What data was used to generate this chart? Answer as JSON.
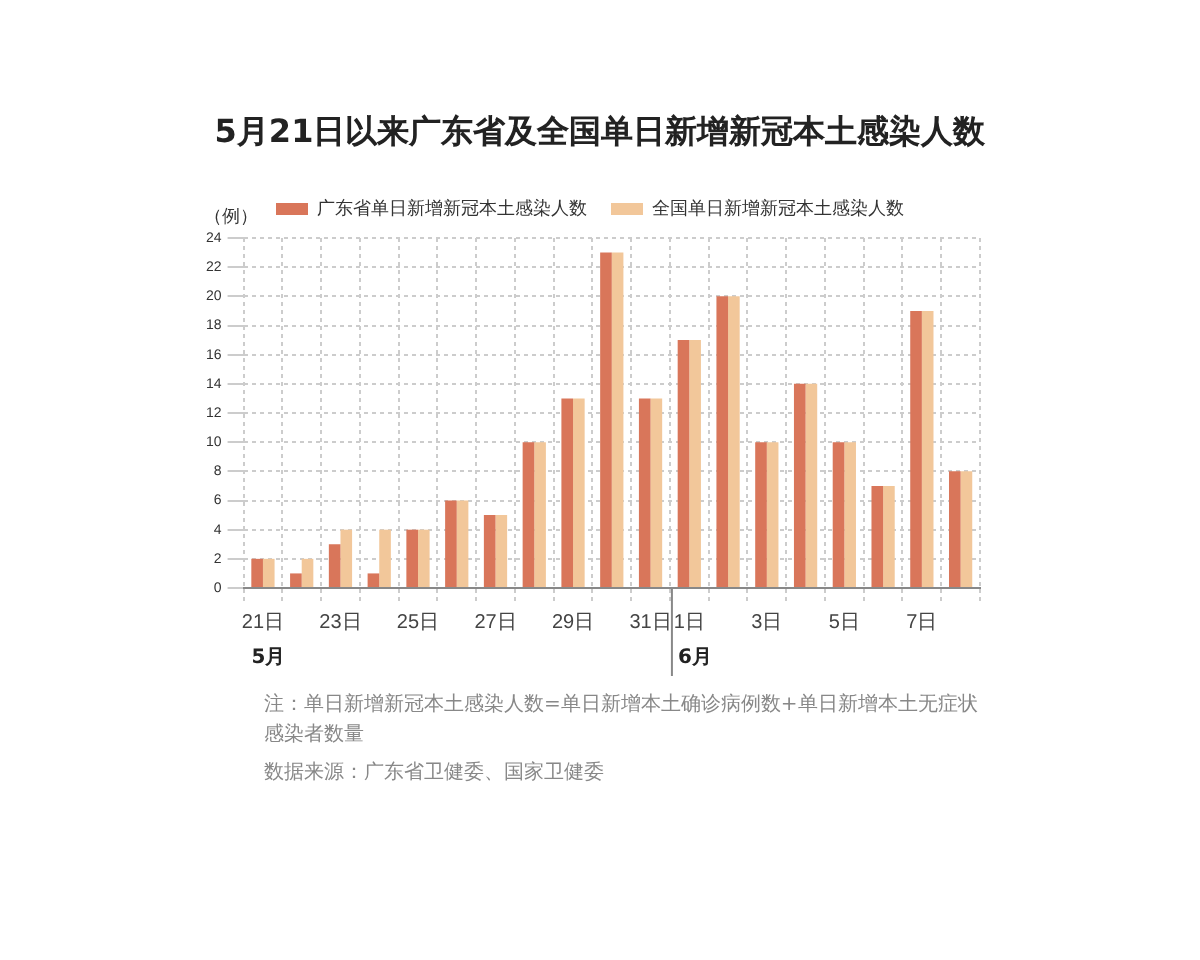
{
  "chart_data": {
    "type": "bar",
    "title": "5月21日以来广东省及全国单日新增新冠本土感染人数",
    "ylabel": "（例）",
    "categories": [
      "21日",
      null,
      "23日",
      null,
      "25日",
      null,
      "27日",
      null,
      "29日",
      null,
      "31日",
      "1日",
      null,
      "3日",
      null,
      "5日",
      null,
      "7日",
      null
    ],
    "series": [
      {
        "name": "广东省单日新增新冠本土感染人数",
        "color": "#d9765a",
        "values": [
          2,
          1,
          3,
          1,
          4,
          6,
          5,
          10,
          13,
          23,
          13,
          17,
          20,
          10,
          14,
          10,
          7,
          19,
          8
        ]
      },
      {
        "name": "全国单日新增新冠本土感染人数",
        "color": "#f2c79a",
        "values": [
          2,
          2,
          4,
          4,
          4,
          6,
          5,
          10,
          13,
          23,
          13,
          17,
          20,
          10,
          14,
          10,
          7,
          19,
          8
        ]
      }
    ],
    "ylim": [
      0,
      24
    ],
    "yticks": [
      0,
      2,
      4,
      6,
      8,
      10,
      12,
      14,
      16,
      18,
      20,
      22,
      24
    ],
    "grid": true,
    "legend": "top",
    "annotations": [
      "5月",
      "6月",
      "注：单日新增新冠本土感染人数=单日新增本土确诊病例数+单日新增本土无症状感染者数量",
      "数据来源：广东省卫健委、国家卫健委"
    ]
  }
}
